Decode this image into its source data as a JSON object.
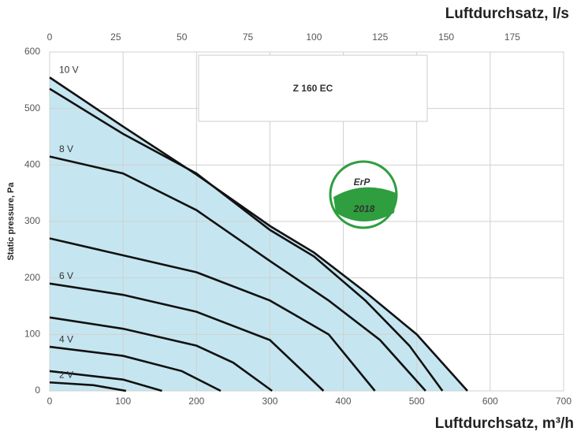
{
  "chart_data": {
    "type": "line",
    "title": "Z 160 EC",
    "badge": {
      "text": "ErP",
      "year": "2018"
    },
    "x_label": "Luftdurchsatz, m³/h",
    "x2_label": "Luftdurchsatz, l/s",
    "y_label": "Static pressure, Pa",
    "xlim": [
      0,
      700
    ],
    "xticks": [
      0,
      100,
      200,
      300,
      400,
      500,
      600,
      700
    ],
    "x2lim": [
      0,
      194.4
    ],
    "x2ticks": [
      0,
      25,
      50,
      75,
      100,
      125,
      150,
      175
    ],
    "ylim": [
      0,
      600
    ],
    "yticks": [
      0,
      100,
      200,
      300,
      400,
      500,
      600
    ],
    "grid": true,
    "fill_color": "#c5e6f0",
    "line_color": "#111111",
    "series": [
      {
        "name": "10 V",
        "x": [
          0,
          100,
          200,
          300,
          360,
          430,
          500,
          569
        ],
        "values": [
          555,
          468,
          383,
          292,
          245,
          175,
          100,
          0
        ]
      },
      {
        "x": [
          0,
          100,
          200,
          300,
          360,
          430,
          490,
          535
        ],
        "values": [
          535,
          455,
          385,
          285,
          238,
          160,
          80,
          0
        ]
      },
      {
        "name": "8 V",
        "x": [
          0,
          100,
          200,
          300,
          380,
          450,
          512
        ],
        "values": [
          415,
          385,
          320,
          230,
          160,
          90,
          0
        ]
      },
      {
        "x": [
          0,
          100,
          200,
          300,
          380,
          443
        ],
        "values": [
          270,
          240,
          210,
          160,
          100,
          0
        ]
      },
      {
        "name": "6 V",
        "x": [
          0,
          100,
          200,
          300,
          373
        ],
        "values": [
          190,
          170,
          140,
          90,
          0
        ]
      },
      {
        "x": [
          0,
          100,
          200,
          250,
          303
        ],
        "values": [
          130,
          110,
          80,
          50,
          0
        ]
      },
      {
        "name": "4 V",
        "x": [
          0,
          100,
          180,
          233
        ],
        "values": [
          78,
          62,
          35,
          0
        ]
      },
      {
        "x": [
          0,
          100,
          153
        ],
        "values": [
          35,
          20,
          0
        ]
      },
      {
        "name": "2 V",
        "x": [
          0,
          60,
          104
        ],
        "values": [
          15,
          10,
          0
        ]
      }
    ]
  }
}
